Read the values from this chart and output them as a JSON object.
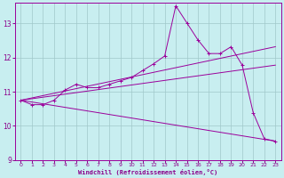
{
  "background_color": "#c8eef0",
  "line_color": "#9b009b",
  "grid_color": "#a0c8ca",
  "xlabel": "Windchill (Refroidissement éolien,°C)",
  "xlabel_color": "#8b008b",
  "xtick_color": "#8b008b",
  "ytick_color": "#8b008b",
  "xlim": [
    -0.5,
    23.5
  ],
  "ylim": [
    9.0,
    13.6
  ],
  "yticks": [
    9,
    10,
    11,
    12,
    13
  ],
  "xticks": [
    0,
    1,
    2,
    3,
    4,
    5,
    6,
    7,
    8,
    9,
    10,
    11,
    12,
    13,
    14,
    15,
    16,
    17,
    18,
    19,
    20,
    21,
    22,
    23
  ],
  "lines": [
    {
      "x": [
        0,
        1,
        2,
        3,
        4,
        5,
        6,
        7,
        8,
        9,
        10,
        11,
        12,
        13,
        14,
        15,
        16,
        17,
        18,
        19,
        20,
        21,
        22,
        23
      ],
      "y": [
        10.75,
        10.62,
        10.62,
        10.75,
        11.05,
        11.22,
        11.12,
        11.12,
        11.22,
        11.32,
        11.42,
        11.62,
        11.82,
        12.05,
        13.52,
        13.02,
        12.52,
        12.12,
        12.12,
        12.32,
        11.78,
        10.38,
        9.62,
        9.55
      ],
      "marker": "+"
    },
    {
      "x": [
        0,
        23
      ],
      "y": [
        10.75,
        12.32
      ],
      "marker": null
    },
    {
      "x": [
        0,
        23
      ],
      "y": [
        10.75,
        11.78
      ],
      "marker": null
    },
    {
      "x": [
        0,
        23
      ],
      "y": [
        10.75,
        9.55
      ],
      "marker": null
    }
  ]
}
